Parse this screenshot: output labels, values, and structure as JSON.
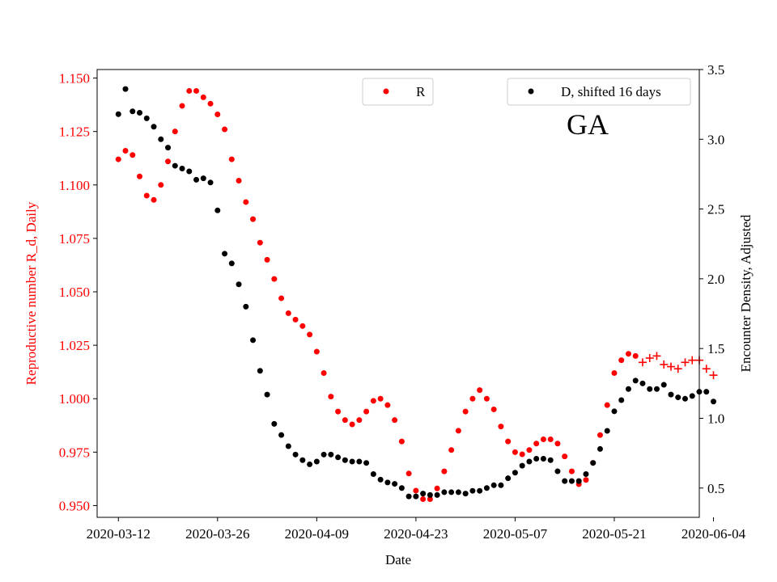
{
  "chart_data": {
    "type": "scatter",
    "title": "GA",
    "xlabel": "Date",
    "ylabel_left": "Reproductive number R_d, Daily",
    "ylabel_right": "Encounter Density, Adjusted",
    "x_start_date": "2020-03-12",
    "x_range_days": [
      -3,
      82
    ],
    "ylim_left": [
      0.9445,
      1.154
    ],
    "ylim_right": [
      0.29,
      3.5
    ],
    "x_ticks": [
      {
        "day": 0,
        "label": "2020-03-12"
      },
      {
        "day": 14,
        "label": "2020-03-26"
      },
      {
        "day": 28,
        "label": "2020-04-09"
      },
      {
        "day": 42,
        "label": "2020-04-23"
      },
      {
        "day": 56,
        "label": "2020-05-07"
      },
      {
        "day": 70,
        "label": "2020-05-21"
      },
      {
        "day": 84,
        "label": "2020-06-04"
      }
    ],
    "y_left_ticks": [
      "0.950",
      "0.975",
      "1.000",
      "1.025",
      "1.050",
      "1.075",
      "1.100",
      "1.125",
      "1.150"
    ],
    "y_right_ticks": [
      "0.5",
      "1.0",
      "1.5",
      "2.0",
      "2.5",
      "3.0",
      "3.5"
    ],
    "legend": [
      {
        "label": "R",
        "color": "#ff0000",
        "placement": "upper-center"
      },
      {
        "label": "D, shifted 16 days",
        "color": "#000000",
        "placement": "upper-right"
      }
    ],
    "series": [
      {
        "name": "R",
        "axis": "left",
        "color": "#ff0000",
        "marker": "dot",
        "x": [
          0,
          1,
          2,
          3,
          4,
          5,
          6,
          7,
          8,
          9,
          10,
          11,
          12,
          13,
          14,
          15,
          16,
          17,
          18,
          19,
          20,
          21,
          22,
          23,
          24,
          25,
          26,
          27,
          28,
          29,
          30,
          31,
          32,
          33,
          34,
          35,
          36,
          37,
          38,
          39,
          40,
          41,
          42,
          43,
          44,
          45,
          46,
          47,
          48,
          49,
          50,
          51,
          52,
          53,
          54,
          55,
          56,
          57,
          58,
          59,
          60,
          61,
          62,
          63,
          64,
          65,
          66,
          67,
          68,
          69,
          70,
          71,
          72,
          73
        ],
        "values": [
          1.112,
          1.116,
          1.114,
          1.104,
          1.095,
          1.093,
          1.1,
          1.111,
          1.125,
          1.137,
          1.144,
          1.144,
          1.141,
          1.138,
          1.133,
          1.126,
          1.112,
          1.102,
          1.092,
          1.084,
          1.073,
          1.065,
          1.056,
          1.047,
          1.04,
          1.037,
          1.034,
          1.03,
          1.022,
          1.012,
          1.001,
          0.994,
          0.99,
          0.988,
          0.99,
          0.994,
          0.999,
          1.0,
          0.997,
          0.99,
          0.98,
          0.965,
          0.957,
          0.953,
          0.953,
          0.958,
          0.966,
          0.976,
          0.985,
          0.994,
          1.0,
          1.004,
          1.0,
          0.995,
          0.987,
          0.98,
          0.975,
          0.974,
          0.976,
          0.979,
          0.981,
          0.981,
          0.979,
          0.973,
          0.966,
          0.96,
          0.962,
          0.97,
          0.983,
          0.997,
          1.012,
          1.018,
          1.021,
          1.02
        ]
      },
      {
        "name": "R (projected)",
        "axis": "left",
        "color": "#ff0000",
        "marker": "plus",
        "x": [
          74,
          75,
          76,
          77,
          78,
          79,
          80,
          81,
          82,
          83,
          84
        ],
        "values": [
          1.017,
          1.019,
          1.02,
          1.016,
          1.015,
          1.014,
          1.017,
          1.018,
          1.018,
          1.014,
          1.011
        ]
      },
      {
        "name": "D, shifted 16 days",
        "axis": "right",
        "color": "#000000",
        "marker": "dot",
        "x": [
          0,
          1,
          2,
          3,
          4,
          5,
          6,
          7,
          8,
          9,
          10,
          11,
          12,
          13,
          14,
          15,
          16,
          17,
          18,
          19,
          20,
          21,
          22,
          23,
          24,
          25,
          26,
          27,
          28,
          29,
          30,
          31,
          32,
          33,
          34,
          35,
          36,
          37,
          38,
          39,
          40,
          41,
          42,
          43,
          44,
          45,
          46,
          47,
          48,
          49,
          50,
          51,
          52,
          53,
          54,
          55,
          56,
          57,
          58,
          59,
          60,
          61,
          62,
          63,
          64,
          65,
          66,
          67,
          68,
          69,
          70,
          71,
          72,
          73,
          74,
          75,
          76,
          77,
          78,
          79,
          80,
          81,
          82,
          83,
          84
        ],
        "values": [
          3.18,
          3.36,
          3.2,
          3.19,
          3.15,
          3.09,
          3.0,
          2.94,
          2.81,
          2.79,
          2.77,
          2.71,
          2.72,
          2.69,
          2.49,
          2.18,
          2.11,
          1.96,
          1.8,
          1.56,
          1.34,
          1.17,
          0.96,
          0.88,
          0.8,
          0.74,
          0.7,
          0.67,
          0.69,
          0.74,
          0.74,
          0.72,
          0.7,
          0.69,
          0.69,
          0.68,
          0.6,
          0.56,
          0.54,
          0.53,
          0.5,
          0.44,
          0.44,
          0.46,
          0.45,
          0.45,
          0.47,
          0.47,
          0.47,
          0.46,
          0.48,
          0.48,
          0.5,
          0.52,
          0.52,
          0.57,
          0.61,
          0.66,
          0.69,
          0.71,
          0.71,
          0.7,
          0.62,
          0.55,
          0.55,
          0.55,
          0.6,
          0.68,
          0.78,
          0.91,
          1.05,
          1.13,
          1.21,
          1.27,
          1.25,
          1.21,
          1.21,
          1.24,
          1.17,
          1.15,
          1.14,
          1.16,
          1.19,
          1.19,
          1.12
        ]
      }
    ]
  }
}
